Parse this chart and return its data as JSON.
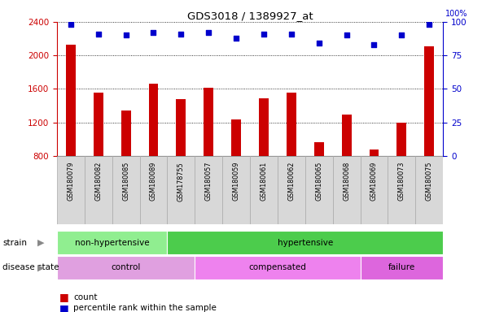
{
  "title": "GDS3018 / 1389927_at",
  "samples": [
    "GSM180079",
    "GSM180082",
    "GSM180085",
    "GSM180089",
    "GSM178755",
    "GSM180057",
    "GSM180059",
    "GSM180061",
    "GSM180062",
    "GSM180065",
    "GSM180068",
    "GSM180069",
    "GSM180073",
    "GSM180075"
  ],
  "counts": [
    2130,
    1560,
    1340,
    1660,
    1480,
    1610,
    1240,
    1490,
    1560,
    960,
    1290,
    880,
    1195,
    2110
  ],
  "percentiles": [
    98,
    91,
    90,
    92,
    91,
    92,
    88,
    91,
    91,
    84,
    90,
    83,
    90,
    98
  ],
  "ylim_left": [
    800,
    2400
  ],
  "ylim_right": [
    0,
    100
  ],
  "yticks_left": [
    800,
    1200,
    1600,
    2000,
    2400
  ],
  "yticks_right": [
    0,
    25,
    50,
    75,
    100
  ],
  "strain_groups": [
    {
      "label": "non-hypertensive",
      "start": 0,
      "end": 4,
      "color": "#90ee90"
    },
    {
      "label": "hypertensive",
      "start": 4,
      "end": 14,
      "color": "#4ccc4c"
    }
  ],
  "disease_groups": [
    {
      "label": "control",
      "start": 0,
      "end": 5,
      "color": "#e0a0e0"
    },
    {
      "label": "compensated",
      "start": 5,
      "end": 11,
      "color": "#ee82ee"
    },
    {
      "label": "failure",
      "start": 11,
      "end": 14,
      "color": "#dd66dd"
    }
  ],
  "bar_color": "#cc0000",
  "dot_color": "#0000cc",
  "bar_bottom": 800,
  "left_axis_color": "#cc0000",
  "right_axis_color": "#0000cc",
  "sample_box_color": "#d8d8d8",
  "sample_box_edge": "#aaaaaa"
}
